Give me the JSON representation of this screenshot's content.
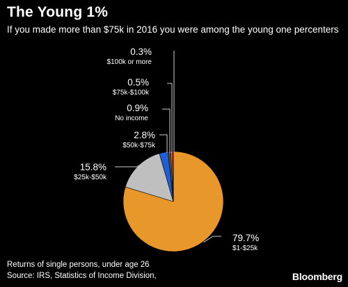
{
  "header": {
    "title": "The Young 1%",
    "subtitle": "If you made more than $75k in 2016 you were among the young one percenters"
  },
  "footer": {
    "note": "Returns of single persons, under age 26",
    "source": "Source: IRS, Statistics of Income Division,",
    "brand": "Bloomberg"
  },
  "colors": {
    "background": "#000000",
    "orange": "#E8972B",
    "gray": "#BFBFBF",
    "blue": "#1F5FD6",
    "dark_gray": "#4A4A4A",
    "red": "#C8102E",
    "leader": "#CCCCCC"
  },
  "chart_data": {
    "type": "pie",
    "slices": [
      {
        "label": "$1-$25k",
        "value": 79.7,
        "display": "79.7%",
        "color": "#E8972B"
      },
      {
        "label": "$25k-$50k",
        "value": 15.8,
        "display": "15.8%",
        "color": "#BFBFBF"
      },
      {
        "label": "$50k-$75k",
        "value": 2.8,
        "display": "2.8%",
        "color": "#1F5FD6"
      },
      {
        "label": "No income",
        "value": 0.9,
        "display": "0.9%",
        "color": "#4A4A4A"
      },
      {
        "label": "$75k-$100k",
        "value": 0.5,
        "display": "0.5%",
        "color": "#E8972B"
      },
      {
        "label": "$100k or more",
        "value": 0.3,
        "display": "0.3%",
        "color": "#C8102E"
      }
    ]
  }
}
